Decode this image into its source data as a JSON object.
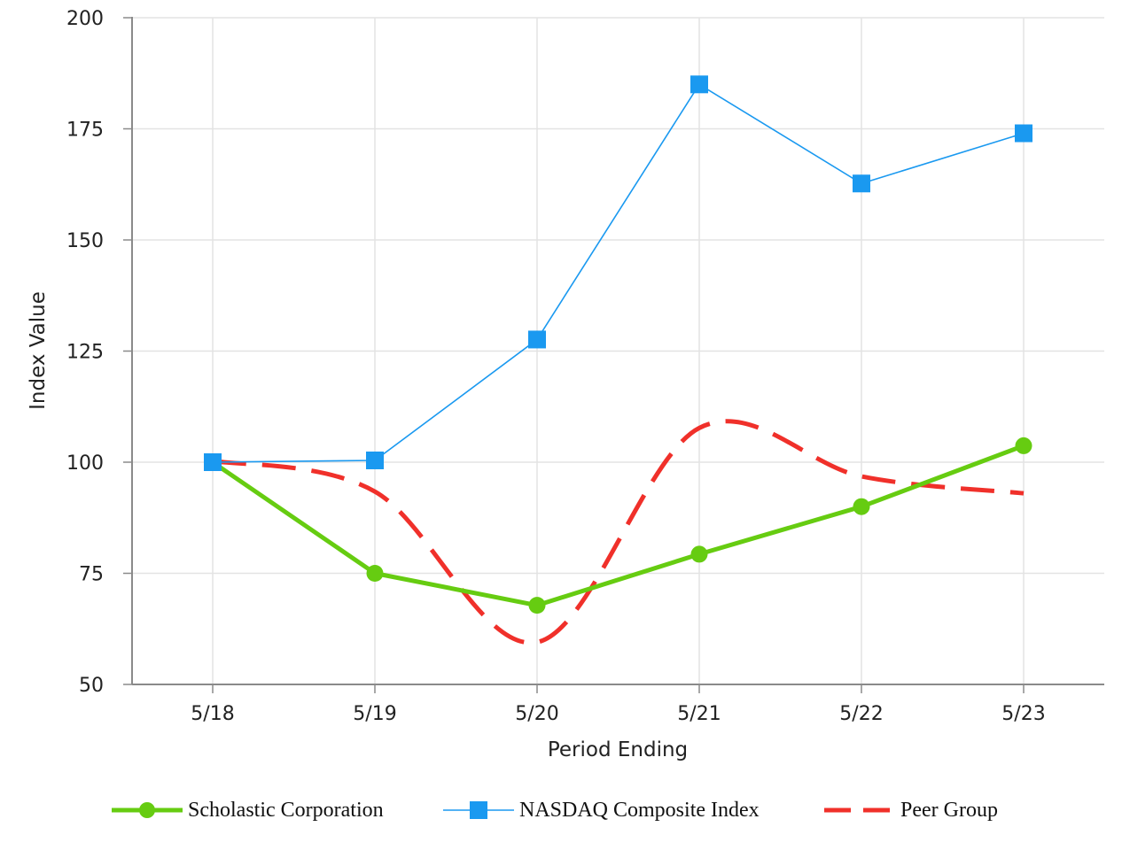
{
  "chart_data": {
    "type": "line",
    "title": "",
    "xlabel": "Period Ending",
    "ylabel": "Index Value",
    "categories": [
      "5/18",
      "5/19",
      "5/20",
      "5/21",
      "5/22",
      "5/23"
    ],
    "ylim": [
      50,
      200
    ],
    "yticks": [
      50,
      75,
      100,
      125,
      150,
      175,
      200
    ],
    "grid": true,
    "legend_position": "bottom",
    "series": [
      {
        "name": "Scholastic Corporation",
        "values": [
          100,
          75,
          67.8,
          79.3,
          90,
          103.7
        ],
        "color": "#66cc11",
        "style": "solid-circle"
      },
      {
        "name": "NASDAQ Composite Index",
        "values": [
          100,
          100.4,
          127.6,
          185,
          162.7,
          174
        ],
        "color": "#1a99f0",
        "style": "thin-square"
      },
      {
        "name": "Peer Group",
        "values": [
          100.3,
          93.4,
          59.5,
          107.7,
          96.8,
          93
        ],
        "color": "#f0302a",
        "style": "dashed-smooth"
      }
    ]
  }
}
